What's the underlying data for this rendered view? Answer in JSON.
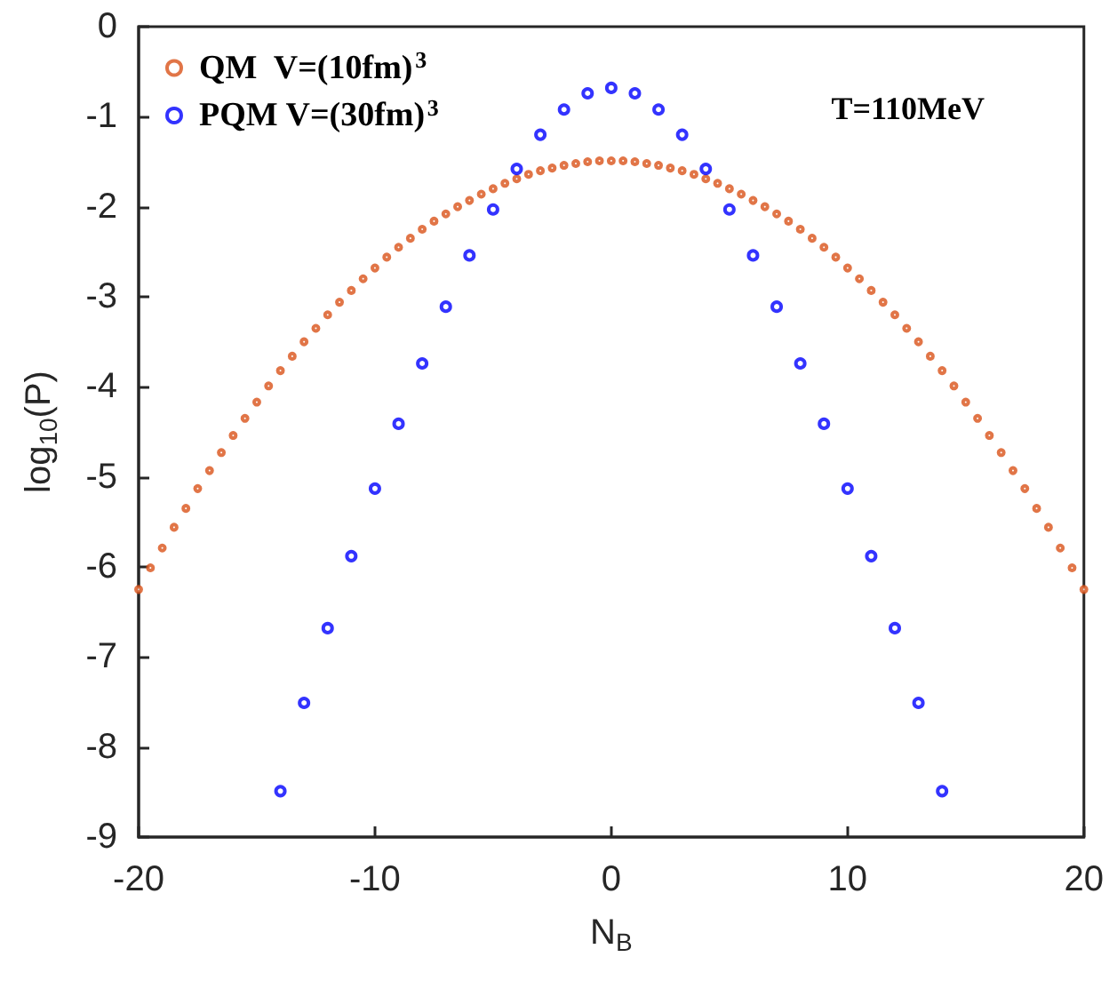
{
  "chart_data": {
    "type": "scatter",
    "xlabel": "N$_{B}$",
    "ylabel": "log$_{10}$(P)",
    "annotations": [
      "T=110MeV"
    ],
    "xlim": [
      -20,
      20
    ],
    "xticks": [
      -20,
      -10,
      0,
      10,
      20
    ],
    "ylim": [
      -9,
      0
    ],
    "yticks": [
      -9,
      -8,
      -7,
      -6,
      -5,
      -4,
      -3,
      -2,
      -1,
      0
    ],
    "grid": false,
    "legend": "top left",
    "marker": "circle",
    "series": [
      {
        "name": "QM  V=(10fm)$^{3}$",
        "color": "#d95319",
        "x": [
          -20,
          -19.5,
          -19,
          -18.5,
          -18,
          -17.5,
          -17,
          -16.5,
          -16,
          -15.5,
          -15,
          -14.5,
          -14,
          -13.5,
          -13,
          -12.5,
          -12,
          -11.5,
          -11,
          -10.5,
          -10,
          -9.5,
          -9,
          -8.5,
          -8,
          -7.5,
          -7,
          -6.5,
          -6,
          -5.5,
          -5,
          -4.5,
          -4,
          -3.5,
          -3,
          -2.5,
          -2,
          -1.5,
          -1,
          -0.5,
          0,
          0.5,
          1,
          1.5,
          2,
          2.5,
          3,
          3.5,
          4,
          4.5,
          5,
          5.5,
          6,
          6.5,
          7,
          7.5,
          8,
          8.5,
          9,
          9.5,
          10,
          10.5,
          11,
          11.5,
          12,
          12.5,
          13,
          13.5,
          14,
          14.5,
          15,
          15.5,
          16,
          16.5,
          17,
          17.5,
          18,
          18.5,
          19,
          19.5,
          20
        ],
        "values": [
          -6.25,
          -6.01,
          -5.79,
          -5.56,
          -5.35,
          -5.13,
          -4.93,
          -4.73,
          -4.54,
          -4.35,
          -4.17,
          -3.99,
          -3.82,
          -3.66,
          -3.5,
          -3.35,
          -3.2,
          -3.06,
          -2.93,
          -2.8,
          -2.68,
          -2.56,
          -2.45,
          -2.35,
          -2.25,
          -2.16,
          -2.08,
          -2.0,
          -1.93,
          -1.86,
          -1.8,
          -1.74,
          -1.69,
          -1.64,
          -1.6,
          -1.57,
          -1.54,
          -1.52,
          -1.5,
          -1.49,
          -1.49,
          -1.49,
          -1.5,
          -1.52,
          -1.54,
          -1.57,
          -1.6,
          -1.64,
          -1.69,
          -1.74,
          -1.8,
          -1.86,
          -1.93,
          -2.0,
          -2.08,
          -2.16,
          -2.25,
          -2.35,
          -2.45,
          -2.56,
          -2.68,
          -2.8,
          -2.93,
          -3.06,
          -3.2,
          -3.35,
          -3.5,
          -3.66,
          -3.82,
          -3.99,
          -4.17,
          -4.35,
          -4.54,
          -4.73,
          -4.93,
          -5.13,
          -5.35,
          -5.56,
          -5.79,
          -6.01,
          -6.25
        ]
      },
      {
        "name": "PQM V=(30fm)$^{3}$",
        "color": "#0000ff",
        "x": [
          -14,
          -13,
          -12,
          -11,
          -10,
          -9,
          -8,
          -7,
          -6,
          -5,
          -4,
          -3,
          -2,
          -1,
          0,
          1,
          2,
          3,
          4,
          5,
          6,
          7,
          8,
          9,
          10,
          11,
          12,
          13,
          14
        ],
        "values": [
          -8.49,
          -7.51,
          -6.68,
          -5.88,
          -5.13,
          -4.41,
          -3.74,
          -3.11,
          -2.54,
          -2.03,
          -1.58,
          -1.2,
          -0.92,
          -0.74,
          -0.68,
          -0.74,
          -0.92,
          -1.2,
          -1.58,
          -2.03,
          -2.54,
          -3.11,
          -3.74,
          -4.41,
          -5.13,
          -5.88,
          -6.68,
          -7.51,
          -8.49
        ]
      }
    ]
  }
}
